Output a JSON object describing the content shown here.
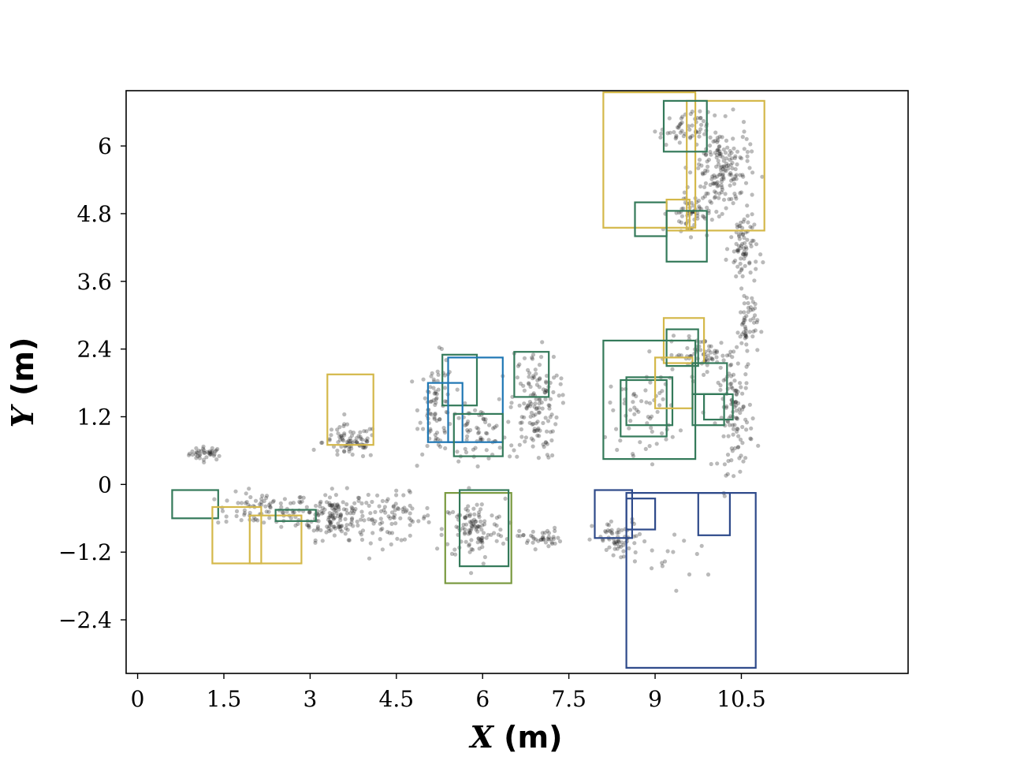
{
  "chart_data": {
    "type": "scatter",
    "title": "",
    "xlabel": {
      "var": "X",
      "unit": " (m)"
    },
    "ylabel": {
      "var": "Y",
      "unit": " (m)"
    },
    "xlim": [
      -0.2,
      13.4
    ],
    "ylim": [
      -3.35,
      6.98
    ],
    "xticks": [
      {
        "value": 0,
        "label": "0"
      },
      {
        "value": 1.5,
        "label": "1.5"
      },
      {
        "value": 3,
        "label": "3"
      },
      {
        "value": 4.5,
        "label": "4.5"
      },
      {
        "value": 6,
        "label": "6"
      },
      {
        "value": 7.5,
        "label": "7.5"
      },
      {
        "value": 9,
        "label": "9"
      },
      {
        "value": 10.5,
        "label": "10.5"
      }
    ],
    "yticks": [
      {
        "value": -2.4,
        "label": "−2.4"
      },
      {
        "value": -1.2,
        "label": "−1.2"
      },
      {
        "value": 0,
        "label": "0"
      },
      {
        "value": 1.2,
        "label": "1.2"
      },
      {
        "value": 2.4,
        "label": "2.4"
      },
      {
        "value": 3.6,
        "label": "3.6"
      },
      {
        "value": 4.8,
        "label": "4.8"
      },
      {
        "value": 6,
        "label": "6"
      }
    ],
    "grid": false,
    "legend": "none",
    "point_color": "#1a1a1a",
    "point_opacity": 0.3,
    "clusters": [
      {
        "cx": 1.2,
        "cy": 0.55,
        "sx": 0.25,
        "sy": 0.1,
        "n": 40
      },
      {
        "cx": 2.2,
        "cy": -0.45,
        "sx": 0.7,
        "sy": 0.25,
        "n": 80
      },
      {
        "cx": 3.4,
        "cy": -0.55,
        "sx": 0.5,
        "sy": 0.35,
        "n": 140
      },
      {
        "cx": 4.4,
        "cy": -0.6,
        "sx": 0.6,
        "sy": 0.35,
        "n": 80
      },
      {
        "cx": 3.7,
        "cy": 0.75,
        "sx": 0.4,
        "sy": 0.25,
        "n": 80
      },
      {
        "cx": 5.2,
        "cy": 1.4,
        "sx": 0.25,
        "sy": 0.7,
        "n": 80
      },
      {
        "cx": 5.9,
        "cy": 0.9,
        "sx": 0.4,
        "sy": 0.4,
        "n": 60
      },
      {
        "cx": 5.85,
        "cy": -0.8,
        "sx": 0.45,
        "sy": 0.45,
        "n": 110
      },
      {
        "cx": 6.9,
        "cy": 1.4,
        "sx": 0.35,
        "sy": 0.8,
        "n": 140
      },
      {
        "cx": 7.0,
        "cy": -0.95,
        "sx": 0.3,
        "sy": 0.15,
        "n": 40
      },
      {
        "cx": 8.4,
        "cy": -1.0,
        "sx": 0.4,
        "sy": 0.3,
        "n": 60
      },
      {
        "cx": 8.8,
        "cy": 1.3,
        "sx": 0.5,
        "sy": 0.6,
        "n": 60
      },
      {
        "cx": 9.8,
        "cy": 2.3,
        "sx": 0.5,
        "sy": 0.25,
        "n": 70
      },
      {
        "cx": 10.4,
        "cy": 1.2,
        "sx": 0.25,
        "sy": 0.8,
        "n": 110
      },
      {
        "cx": 10.6,
        "cy": 2.8,
        "sx": 0.15,
        "sy": 0.5,
        "n": 50
      },
      {
        "cx": 10.55,
        "cy": 4.2,
        "sx": 0.2,
        "sy": 0.6,
        "n": 80
      },
      {
        "cx": 10.15,
        "cy": 5.6,
        "sx": 0.4,
        "sy": 0.6,
        "n": 170
      },
      {
        "cx": 9.6,
        "cy": 4.8,
        "sx": 0.3,
        "sy": 0.3,
        "n": 60
      },
      {
        "cx": 9.5,
        "cy": 6.3,
        "sx": 0.35,
        "sy": 0.25,
        "n": 50
      },
      {
        "cx": 9.3,
        "cy": -1.5,
        "sx": 0.6,
        "sy": 0.5,
        "n": 15
      }
    ],
    "boxes": [
      {
        "x0": 8.1,
        "y0": 4.55,
        "x1": 9.7,
        "y1": 6.95,
        "color": "#d4b84a"
      },
      {
        "x0": 9.55,
        "y0": 4.5,
        "x1": 10.9,
        "y1": 6.8,
        "color": "#d4b84a"
      },
      {
        "x0": 9.15,
        "y0": 5.9,
        "x1": 9.9,
        "y1": 6.8,
        "color": "#347a5a"
      },
      {
        "x0": 8.65,
        "y0": 4.4,
        "x1": 9.2,
        "y1": 5.0,
        "color": "#347a5a"
      },
      {
        "x0": 9.2,
        "y0": 4.5,
        "x1": 9.6,
        "y1": 5.05,
        "color": "#d4b84a"
      },
      {
        "x0": 9.2,
        "y0": 3.95,
        "x1": 9.9,
        "y1": 4.85,
        "color": "#347a5a"
      },
      {
        "x0": 9.15,
        "y0": 2.15,
        "x1": 9.85,
        "y1": 2.95,
        "color": "#d4b84a"
      },
      {
        "x0": 9.2,
        "y0": 2.1,
        "x1": 9.75,
        "y1": 2.75,
        "color": "#347a5a"
      },
      {
        "x0": 8.1,
        "y0": 0.45,
        "x1": 9.7,
        "y1": 2.55,
        "color": "#347a5a"
      },
      {
        "x0": 8.4,
        "y0": 0.85,
        "x1": 9.2,
        "y1": 1.85,
        "color": "#347a5a"
      },
      {
        "x0": 8.5,
        "y0": 1.05,
        "x1": 9.3,
        "y1": 1.9,
        "color": "#347a5a"
      },
      {
        "x0": 9.0,
        "y0": 1.35,
        "x1": 9.65,
        "y1": 2.25,
        "color": "#d4b84a"
      },
      {
        "x0": 9.65,
        "y0": 1.6,
        "x1": 10.25,
        "y1": 2.15,
        "color": "#347a5a"
      },
      {
        "x0": 9.65,
        "y0": 1.05,
        "x1": 10.2,
        "y1": 1.6,
        "color": "#347a5a"
      },
      {
        "x0": 9.85,
        "y0": 1.15,
        "x1": 10.35,
        "y1": 1.6,
        "color": "#347a5a"
      },
      {
        "x0": 3.3,
        "y0": 0.7,
        "x1": 4.1,
        "y1": 1.95,
        "color": "#d4b84a"
      },
      {
        "x0": 5.3,
        "y0": 1.4,
        "x1": 5.9,
        "y1": 2.3,
        "color": "#347a5a"
      },
      {
        "x0": 5.05,
        "y0": 0.75,
        "x1": 5.65,
        "y1": 1.8,
        "color": "#1f77b4"
      },
      {
        "x0": 5.4,
        "y0": 0.75,
        "x1": 6.35,
        "y1": 2.25,
        "color": "#1f77b4"
      },
      {
        "x0": 5.5,
        "y0": 0.5,
        "x1": 6.35,
        "y1": 1.25,
        "color": "#347a5a"
      },
      {
        "x0": 6.55,
        "y0": 1.55,
        "x1": 7.15,
        "y1": 2.35,
        "color": "#347a5a"
      },
      {
        "x0": 0.6,
        "y0": -0.6,
        "x1": 1.4,
        "y1": -0.1,
        "color": "#347a5a"
      },
      {
        "x0": 1.3,
        "y0": -1.4,
        "x1": 2.15,
        "y1": -0.4,
        "color": "#d4b84a"
      },
      {
        "x0": 1.95,
        "y0": -1.4,
        "x1": 2.85,
        "y1": -0.55,
        "color": "#d4b84a"
      },
      {
        "x0": 2.4,
        "y0": -0.65,
        "x1": 3.1,
        "y1": -0.45,
        "color": "#347a5a"
      },
      {
        "x0": 5.35,
        "y0": -1.75,
        "x1": 6.5,
        "y1": -0.15,
        "color": "#7a9a40"
      },
      {
        "x0": 5.6,
        "y0": -1.45,
        "x1": 6.45,
        "y1": -0.1,
        "color": "#347a5a"
      },
      {
        "x0": 7.95,
        "y0": -0.95,
        "x1": 8.6,
        "y1": -0.1,
        "color": "#2e4a8a"
      },
      {
        "x0": 8.5,
        "y0": -0.8,
        "x1": 9.0,
        "y1": -0.25,
        "color": "#2e4a8a"
      },
      {
        "x0": 8.5,
        "y0": -3.25,
        "x1": 10.75,
        "y1": -0.15,
        "color": "#2e4a8a"
      },
      {
        "x0": 9.75,
        "y0": -0.9,
        "x1": 10.3,
        "y1": -0.15,
        "color": "#2e4a8a"
      }
    ]
  }
}
